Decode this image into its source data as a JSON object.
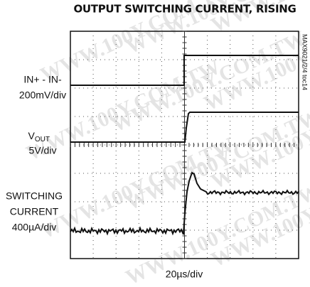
{
  "title": "OUTPUT SWITCHING CURRENT, RISING",
  "trace_labels": {
    "input": [
      "IN+ - IN-",
      "200mV/div"
    ],
    "output": {
      "main": "V",
      "sub": "OUT",
      "scale": "5V/div"
    },
    "current": [
      "SWITCHING",
      "CURRENT",
      "400µA/div"
    ]
  },
  "time_scale": "20µs/div",
  "figure_id": "MAX9021/2/4 toc14",
  "watermark": "WWW.100Y.COM.TW"
}
